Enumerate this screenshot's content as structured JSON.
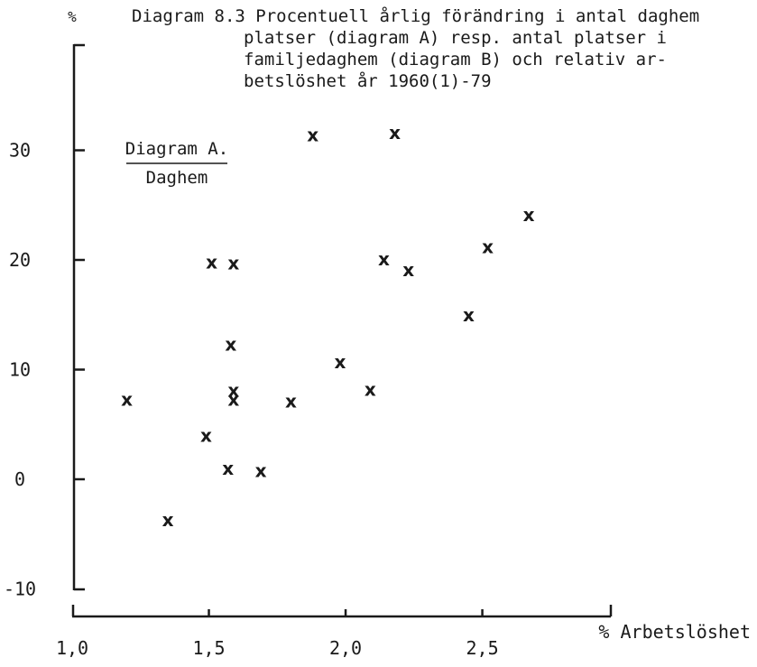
{
  "chart_data": {
    "type": "scatter",
    "title_lines": [
      "Diagram 8.3  Procentuell årlig förändring i antal daghem",
      "platser (diagram A) resp. antal platser i",
      "familjedaghem (diagram B) och relativ ar-",
      "betslöshet år 1960(1)-79"
    ],
    "panel_title": "Diagram A.",
    "panel_subtitle": "Daghem",
    "ylabel": "%",
    "xlabel": "% Arbetslöshet",
    "marker": "x",
    "x_ticks": [
      "1,0",
      "1,5",
      "2,0",
      "2,5"
    ],
    "y_ticks": [
      "30",
      "20",
      "10",
      "0",
      "-10"
    ],
    "xlim": [
      1.0,
      2.97
    ],
    "ylim": [
      -11,
      35
    ],
    "points": [
      {
        "x": 1.2,
        "y": 7.3
      },
      {
        "x": 1.35,
        "y": -3.7
      },
      {
        "x": 1.49,
        "y": 4.0
      },
      {
        "x": 1.51,
        "y": 19.8
      },
      {
        "x": 1.57,
        "y": 1.0
      },
      {
        "x": 1.58,
        "y": 12.3
      },
      {
        "x": 1.59,
        "y": 7.3
      },
      {
        "x": 1.59,
        "y": 8.1
      },
      {
        "x": 1.59,
        "y": 19.7
      },
      {
        "x": 1.69,
        "y": 0.8
      },
      {
        "x": 1.8,
        "y": 7.1
      },
      {
        "x": 1.88,
        "y": 31.4
      },
      {
        "x": 1.98,
        "y": 10.7
      },
      {
        "x": 2.09,
        "y": 8.2
      },
      {
        "x": 2.14,
        "y": 20.1
      },
      {
        "x": 2.18,
        "y": 31.6
      },
      {
        "x": 2.23,
        "y": 19.1
      },
      {
        "x": 2.45,
        "y": 15.0
      },
      {
        "x": 2.52,
        "y": 21.2
      },
      {
        "x": 2.67,
        "y": 24.1
      }
    ]
  }
}
